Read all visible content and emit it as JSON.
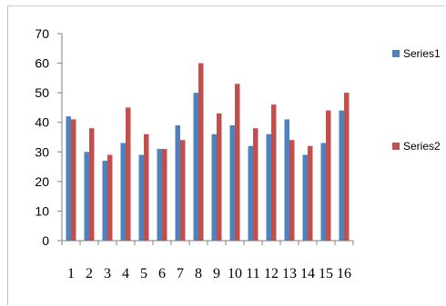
{
  "chart_data": {
    "type": "bar",
    "categories": [
      "1",
      "2",
      "3",
      "4",
      "5",
      "6",
      "7",
      "8",
      "9",
      "10",
      "11",
      "12",
      "13",
      "14",
      "15",
      "16"
    ],
    "series": [
      {
        "name": "Series1",
        "color": "#4f81bd",
        "values": [
          42,
          30,
          27,
          33,
          29,
          31,
          39,
          50,
          36,
          39,
          32,
          36,
          41,
          29,
          33,
          44
        ]
      },
      {
        "name": "Series2",
        "color": "#c0504d",
        "values": [
          41,
          38,
          29,
          45,
          36,
          31,
          34,
          60,
          43,
          53,
          38,
          46,
          34,
          32,
          44,
          50
        ]
      }
    ],
    "ylim": [
      0,
      70
    ],
    "yticks": [
      0,
      10,
      20,
      30,
      40,
      50,
      60,
      70
    ],
    "grid": false,
    "legend_position": "right",
    "legend_labels_visible": [
      "Series1",
      "Series2"
    ]
  }
}
